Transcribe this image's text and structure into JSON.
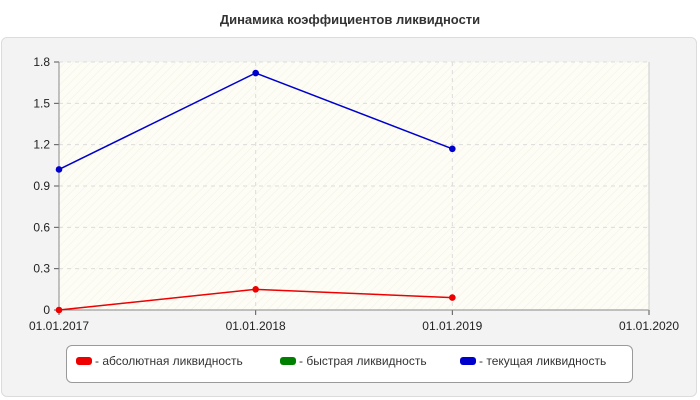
{
  "chart_data": {
    "type": "line",
    "title": "Динамика коэффициентов ликвидности",
    "x": [
      "01.01.2017",
      "01.01.2018",
      "01.01.2019",
      "01.01.2020"
    ],
    "x_ticks": [
      "01.01.2017",
      "01.01.2018",
      "01.01.2019",
      "01.01.2020"
    ],
    "y_ticks": [
      "0",
      "0.3",
      "0.6",
      "0.9",
      "1.2",
      "1.5",
      "1.8"
    ],
    "ylim": [
      0,
      1.8
    ],
    "grid": true,
    "legend_position": "bottom",
    "series": [
      {
        "name": "- абсолютная ликвидность",
        "color": "#ee0000",
        "values": [
          0.0,
          0.15,
          0.09,
          null
        ]
      },
      {
        "name": "- быстрая ликвидность",
        "color": "#008000",
        "values": [
          null,
          null,
          null,
          null
        ]
      },
      {
        "name": "- текущая ликвидность",
        "color": "#0000cc",
        "values": [
          1.02,
          1.72,
          1.17,
          null
        ]
      }
    ]
  }
}
